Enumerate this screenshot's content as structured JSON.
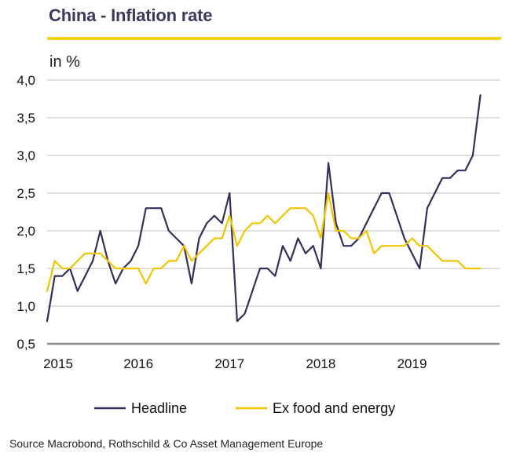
{
  "title": "China - Inflation rate",
  "unit_label": "in %",
  "source": "Source Macrobond, Rothschild & Co Asset Management  Europe",
  "colors": {
    "headline": "#33305c",
    "ex_food_energy": "#f2c500",
    "title_rule": "#f2d21b",
    "grid": "#bdbdbd",
    "axis": "#8c8c8c"
  },
  "chart_data": {
    "type": "line",
    "title": "China - Inflation rate",
    "ylabel": "in %",
    "xlabel": "",
    "ylim": [
      0.5,
      4.0
    ],
    "xlim": [
      2015.0,
      2019.96
    ],
    "yticks": [
      0.5,
      1.0,
      1.5,
      2.0,
      2.5,
      3.0,
      3.5,
      4.0
    ],
    "ytick_labels": [
      "0,5",
      "1,0",
      "1,5",
      "2,0",
      "2,5",
      "3,0",
      "3,5",
      "4,0"
    ],
    "xticks": [
      2015,
      2016,
      2017,
      2018,
      2019
    ],
    "xtick_labels": [
      "2015",
      "2016",
      "2017",
      "2018",
      "2019"
    ],
    "grid": true,
    "legend_position": "bottom",
    "series": [
      {
        "name": "Headline",
        "start": 2015.0,
        "step_months": 1,
        "values": [
          0.8,
          1.4,
          1.4,
          1.5,
          1.2,
          1.4,
          1.6,
          2.0,
          1.6,
          1.3,
          1.5,
          1.6,
          1.8,
          2.3,
          2.3,
          2.3,
          2.0,
          1.9,
          1.8,
          1.3,
          1.9,
          2.1,
          2.2,
          2.1,
          2.5,
          0.8,
          0.9,
          1.2,
          1.5,
          1.5,
          1.4,
          1.8,
          1.6,
          1.9,
          1.7,
          1.8,
          1.5,
          2.9,
          2.1,
          1.8,
          1.8,
          1.9,
          2.1,
          2.3,
          2.5,
          2.5,
          2.2,
          1.9,
          1.7,
          1.5,
          2.3,
          2.5,
          2.7,
          2.7,
          2.8,
          2.8,
          3.0,
          3.8
        ]
      },
      {
        "name": "Ex food and energy",
        "start": 2015.0,
        "step_months": 1,
        "values": [
          1.2,
          1.6,
          1.5,
          1.5,
          1.6,
          1.7,
          1.7,
          1.7,
          1.6,
          1.5,
          1.5,
          1.5,
          1.5,
          1.3,
          1.5,
          1.5,
          1.6,
          1.6,
          1.8,
          1.6,
          1.7,
          1.8,
          1.9,
          1.9,
          2.2,
          1.8,
          2.0,
          2.1,
          2.1,
          2.2,
          2.1,
          2.2,
          2.3,
          2.3,
          2.3,
          2.2,
          1.9,
          2.5,
          2.0,
          2.0,
          1.9,
          1.9,
          2.0,
          1.7,
          1.8,
          1.8,
          1.8,
          1.8,
          1.9,
          1.8,
          1.8,
          1.7,
          1.6,
          1.6,
          1.6,
          1.5,
          1.5,
          1.5
        ]
      }
    ]
  }
}
